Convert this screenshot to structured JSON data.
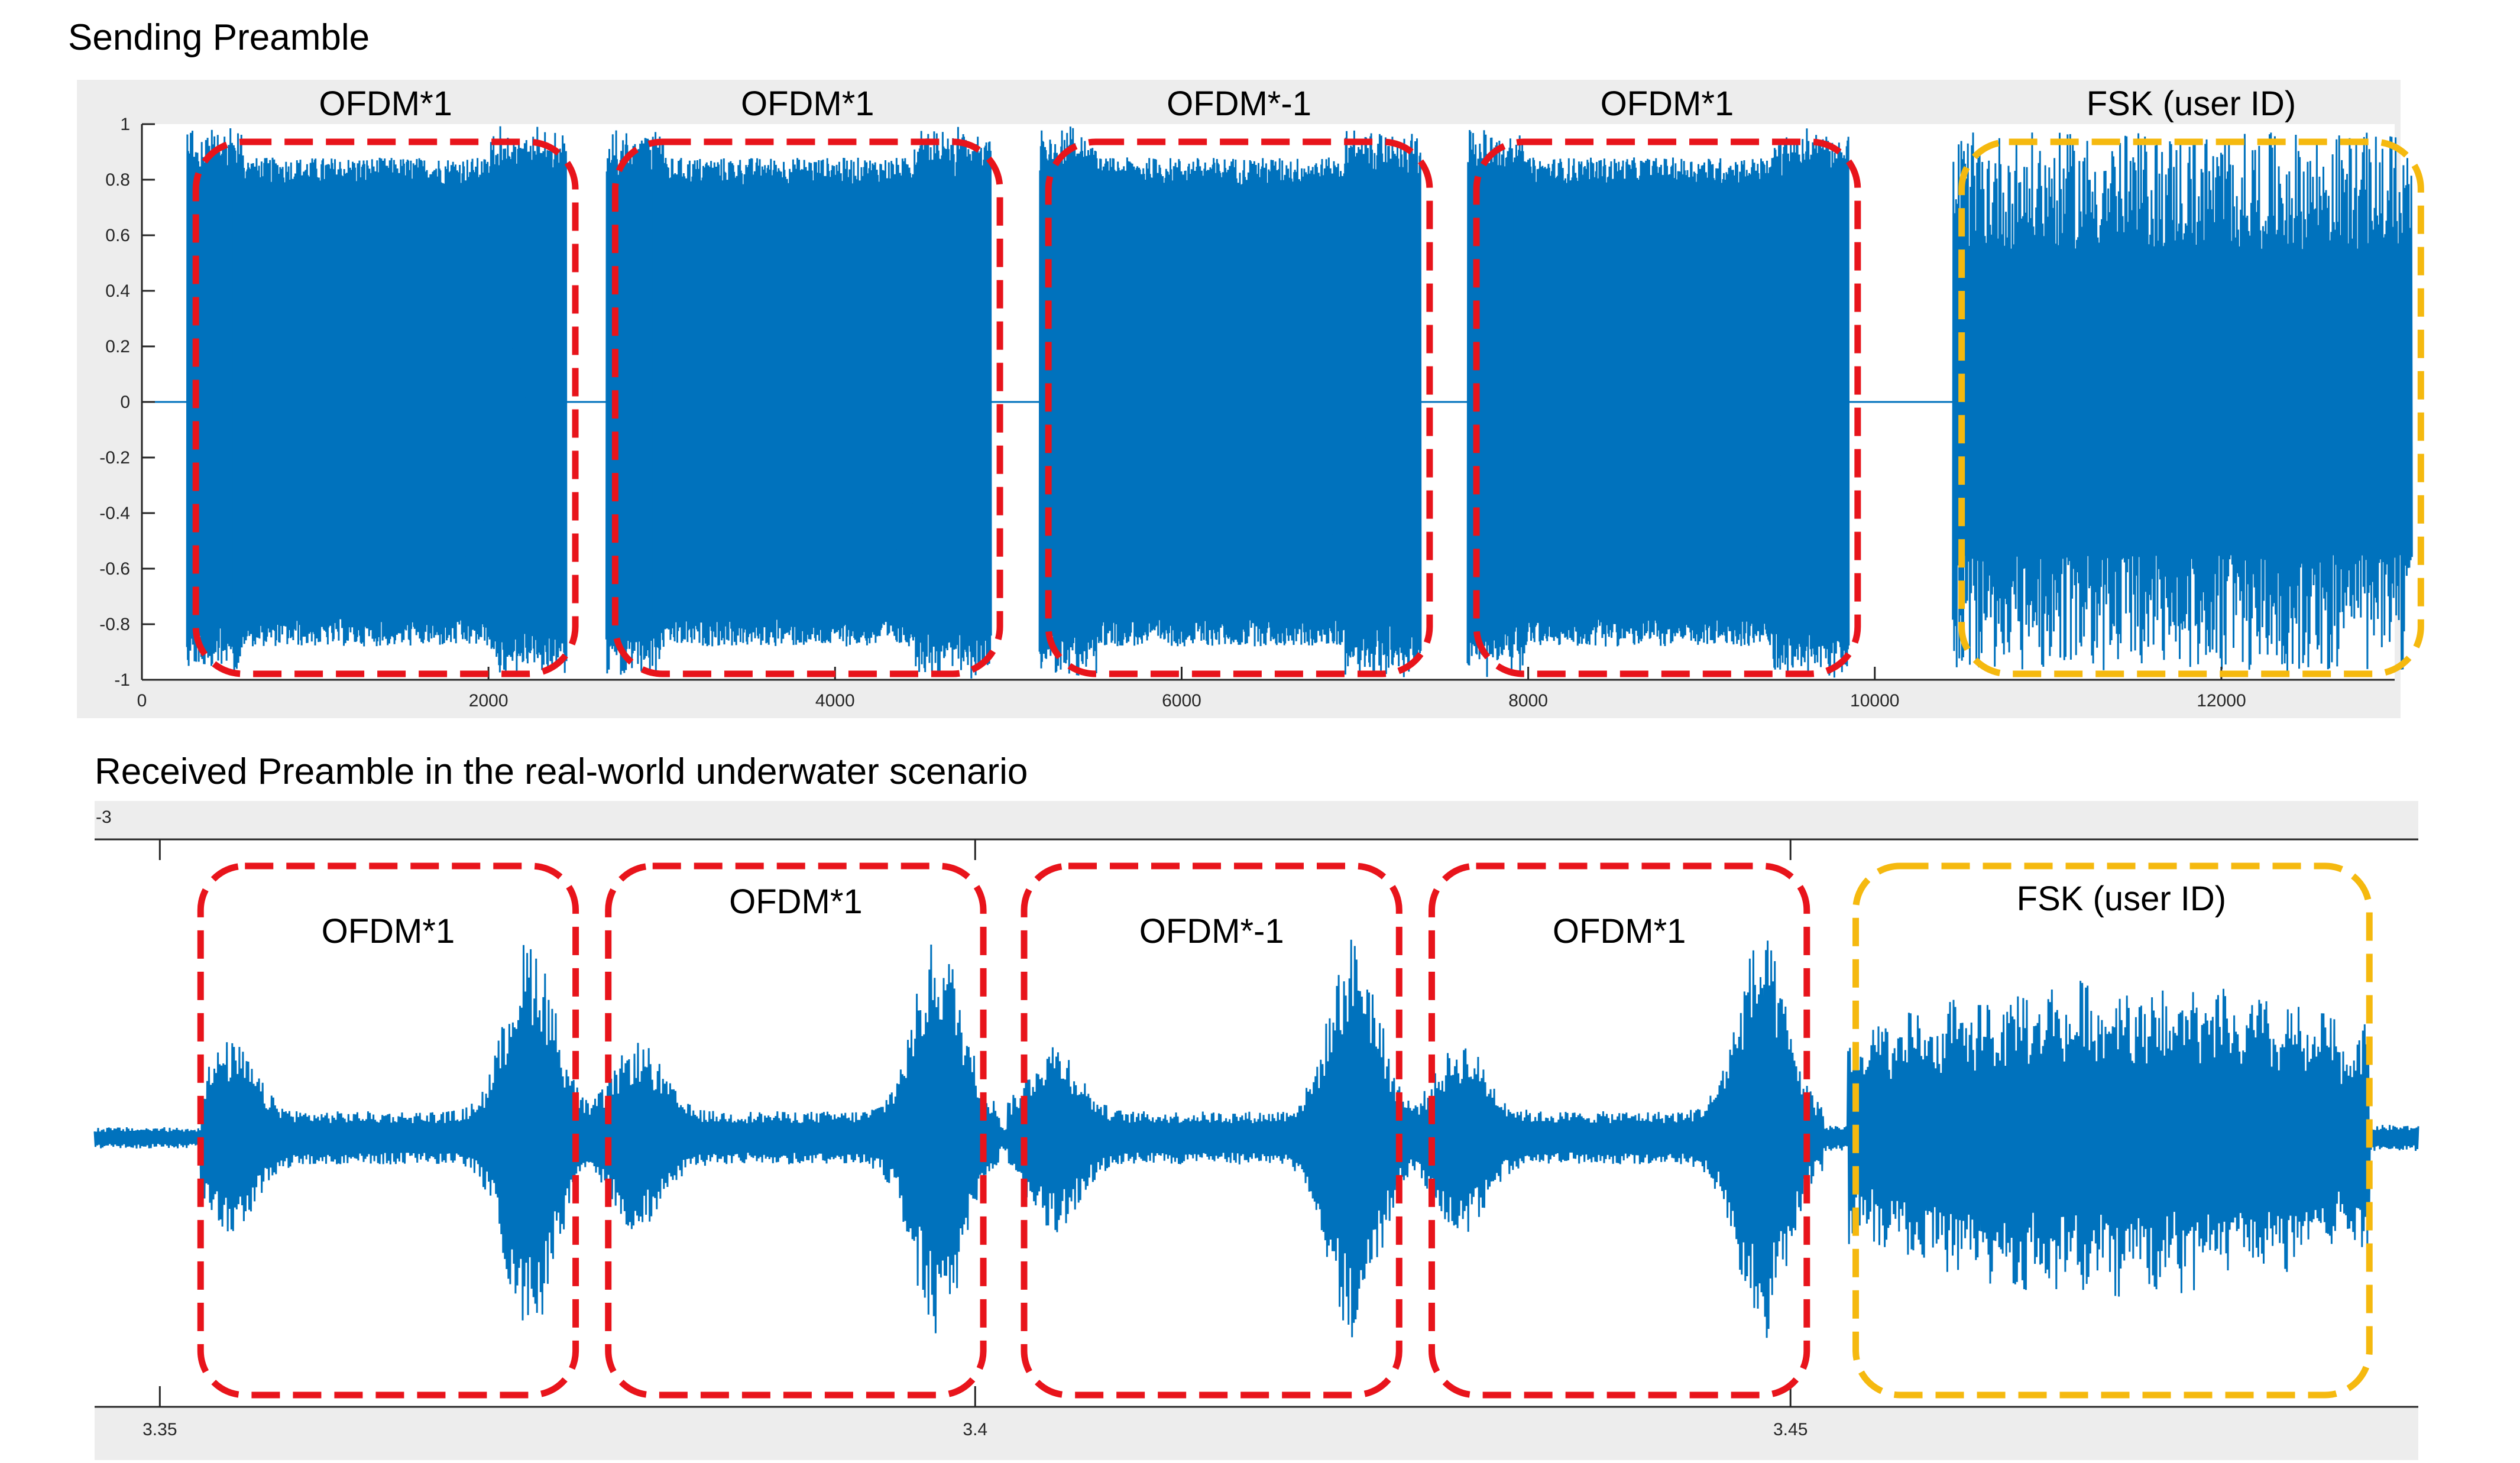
{
  "chart_data": [
    {
      "type": "line",
      "title": "Sending Preamble",
      "xlabel": "",
      "ylabel": "",
      "xlim": [
        0,
        13000
      ],
      "ylim": [
        -1,
        1
      ],
      "x_ticks": [
        "0",
        "2000",
        "4000",
        "6000",
        "8000",
        "10000",
        "12000"
      ],
      "y_ticks": [
        "1",
        "0.8",
        "0.6",
        "0.4",
        "0.2",
        "0",
        "-0.2",
        "-0.4",
        "-0.6",
        "-0.8",
        "-1"
      ],
      "line_color": "#0072BD",
      "segments": [
        {
          "label": "OFDM*1",
          "x_range": [
            260,
            2450
          ],
          "box_color": "#E8141B",
          "kind": "ofdm"
        },
        {
          "label": "OFDM*1",
          "x_range": [
            2680,
            4900
          ],
          "box_color": "#E8141B",
          "kind": "ofdm"
        },
        {
          "label": "OFDM*-1",
          "x_range": [
            5180,
            7380
          ],
          "box_color": "#E8141B",
          "kind": "ofdm"
        },
        {
          "label": "OFDM*1",
          "x_range": [
            7650,
            9850
          ],
          "box_color": "#E8141B",
          "kind": "ofdm"
        },
        {
          "label": "FSK (user ID)",
          "x_range": [
            10450,
            13100
          ],
          "box_color": "#F5B90F",
          "kind": "fsk"
        }
      ]
    },
    {
      "type": "line",
      "title": "Received Preamble in the real-world underwater scenario",
      "xlabel": "",
      "ylabel": "",
      "exponent_label": "-3",
      "xlim": [
        3.346,
        3.4885
      ],
      "x_ticks": [
        "3.35",
        "3.4",
        "3.45"
      ],
      "line_color": "#0072BD",
      "segments": [
        {
          "label": "OFDM*1",
          "x_range": [
            3.3525,
            3.3755
          ],
          "box_color": "#E8141B"
        },
        {
          "label": "OFDM*1",
          "x_range": [
            3.3775,
            3.4005
          ],
          "box_color": "#E8141B"
        },
        {
          "label": "OFDM*-1",
          "x_range": [
            3.403,
            3.426
          ],
          "box_color": "#E8141B"
        },
        {
          "label": "OFDM*1",
          "x_range": [
            3.428,
            3.451
          ],
          "box_color": "#E8141B"
        },
        {
          "label": "FSK (user ID)",
          "x_range": [
            3.454,
            3.4855
          ],
          "box_color": "#F5B90F"
        }
      ]
    }
  ]
}
